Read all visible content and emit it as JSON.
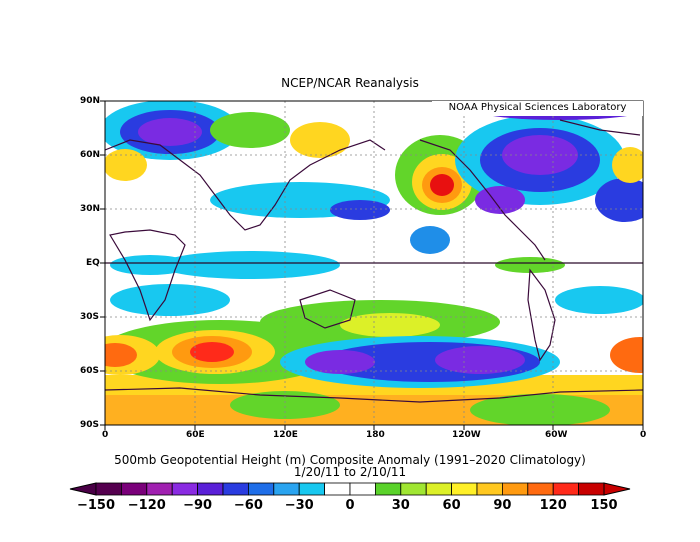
{
  "header": {
    "title": "NCEP/NCAR Reanalysis"
  },
  "map": {
    "credit": "NOAA Physical Sciences Laboratory",
    "lat_labels": [
      "90N",
      "60N",
      "30N",
      "EQ",
      "30S",
      "60S",
      "90S"
    ],
    "lon_labels": [
      "0",
      "60E",
      "120E",
      "180",
      "120W",
      "60W",
      "0"
    ]
  },
  "footer": {
    "caption_line1": "500mb Geopotential Height (m) Composite Anomaly (1991–2020 Climatology)",
    "caption_line2": "1/20/11   to 2/10/11"
  },
  "colorbar": {
    "labels": [
      "−150",
      "−120",
      "−90",
      "−60",
      "−30",
      "0",
      "30",
      "60",
      "90",
      "120",
      "150"
    ],
    "colors": [
      "#55004f",
      "#7a007a",
      "#a020b0",
      "#8a2be2",
      "#5a20d8",
      "#2a3ce0",
      "#1f6ee8",
      "#2aa4f0",
      "#18c8f0",
      "#ffffff",
      "#ffffff",
      "#5ad22a",
      "#a0e632",
      "#dcf028",
      "#fff028",
      "#ffc820",
      "#ff9a10",
      "#ff6a10",
      "#ff2a1a",
      "#c80000"
    ],
    "arrow_left_color": "#4a0046",
    "arrow_right_color": "#c80000"
  }
}
